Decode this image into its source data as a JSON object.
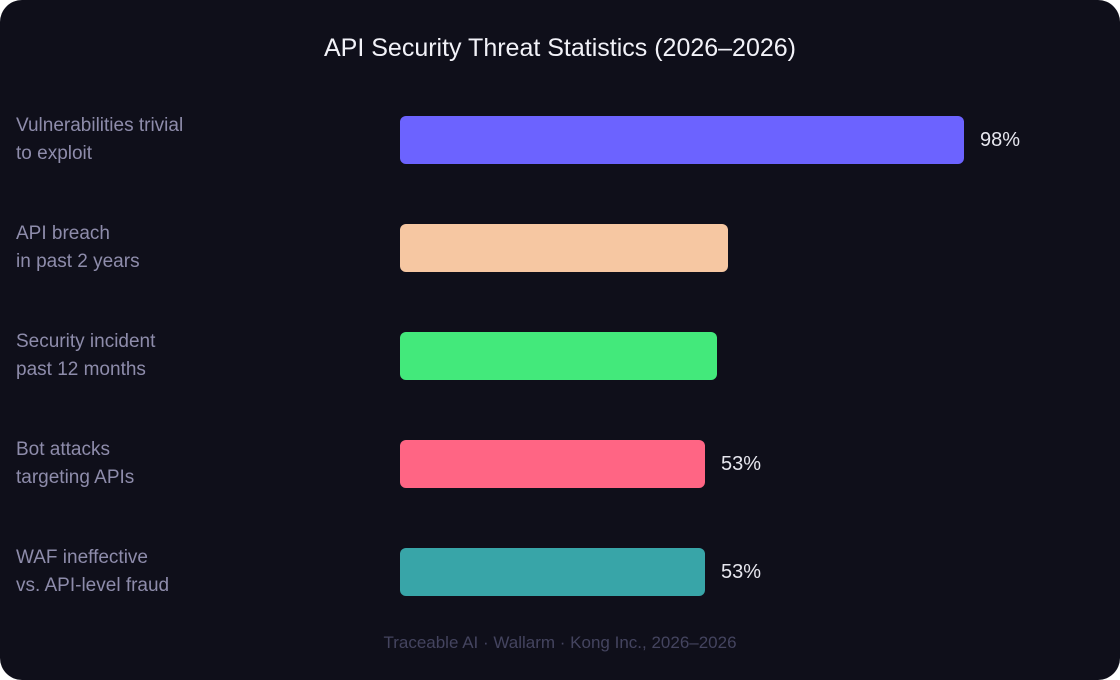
{
  "chart_data": {
    "type": "bar",
    "orientation": "horizontal",
    "title": "API Security Threat Statistics (2026–2026)",
    "categories": [
      "Vulnerabilities trivial\nto exploit",
      "API breach\nin past 2 years",
      "Security incident\npast 12 months",
      "Bot attacks\ntargeting APIs",
      "WAF ineffective\nvs. API-level fraud"
    ],
    "values": [
      98,
      57,
      55,
      53,
      53
    ],
    "value_labels": [
      "98%",
      null,
      null,
      "53%",
      "53%"
    ],
    "colors": [
      "#6c63ff",
      "#f6c7a2",
      "#43e97b",
      "#ff6584",
      "#38a5a8"
    ],
    "xlim": [
      0,
      100
    ],
    "source": "Traceable AI · Wallarm · Kong Inc., 2026–2026"
  }
}
